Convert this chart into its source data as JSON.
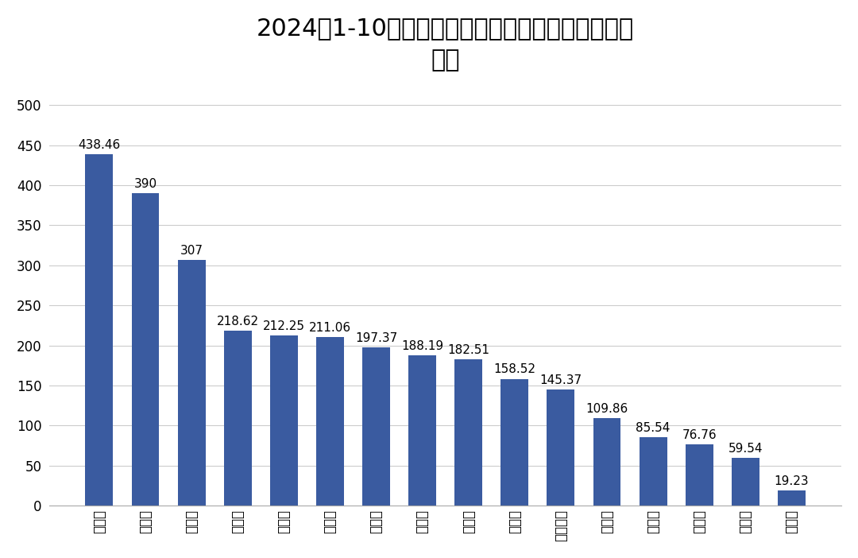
{
  "title": "2024年1-10月各市级行政区无人机飞行架次（万架\n次）",
  "categories": [
    "滁州市",
    "合肥市",
    "安庆市",
    "亳州市",
    "六安市",
    "阜阳市",
    "芜湖市",
    "蚌埠市",
    "淮南市",
    "宿州市",
    "马鞍山市",
    "铜陵市",
    "宣城市",
    "池州市",
    "淮北市",
    "黄山市"
  ],
  "values": [
    438.46,
    390,
    307,
    218.62,
    212.25,
    211.06,
    197.37,
    188.19,
    182.51,
    158.52,
    145.37,
    109.86,
    85.54,
    76.76,
    59.54,
    19.23
  ],
  "bar_color": "#3A5BA0",
  "background_color": "#FFFFFF",
  "ylim": [
    0,
    520
  ],
  "yticks": [
    0,
    50,
    100,
    150,
    200,
    250,
    300,
    350,
    400,
    450,
    500
  ],
  "title_fontsize": 22,
  "tick_fontsize": 12,
  "value_fontsize": 11
}
